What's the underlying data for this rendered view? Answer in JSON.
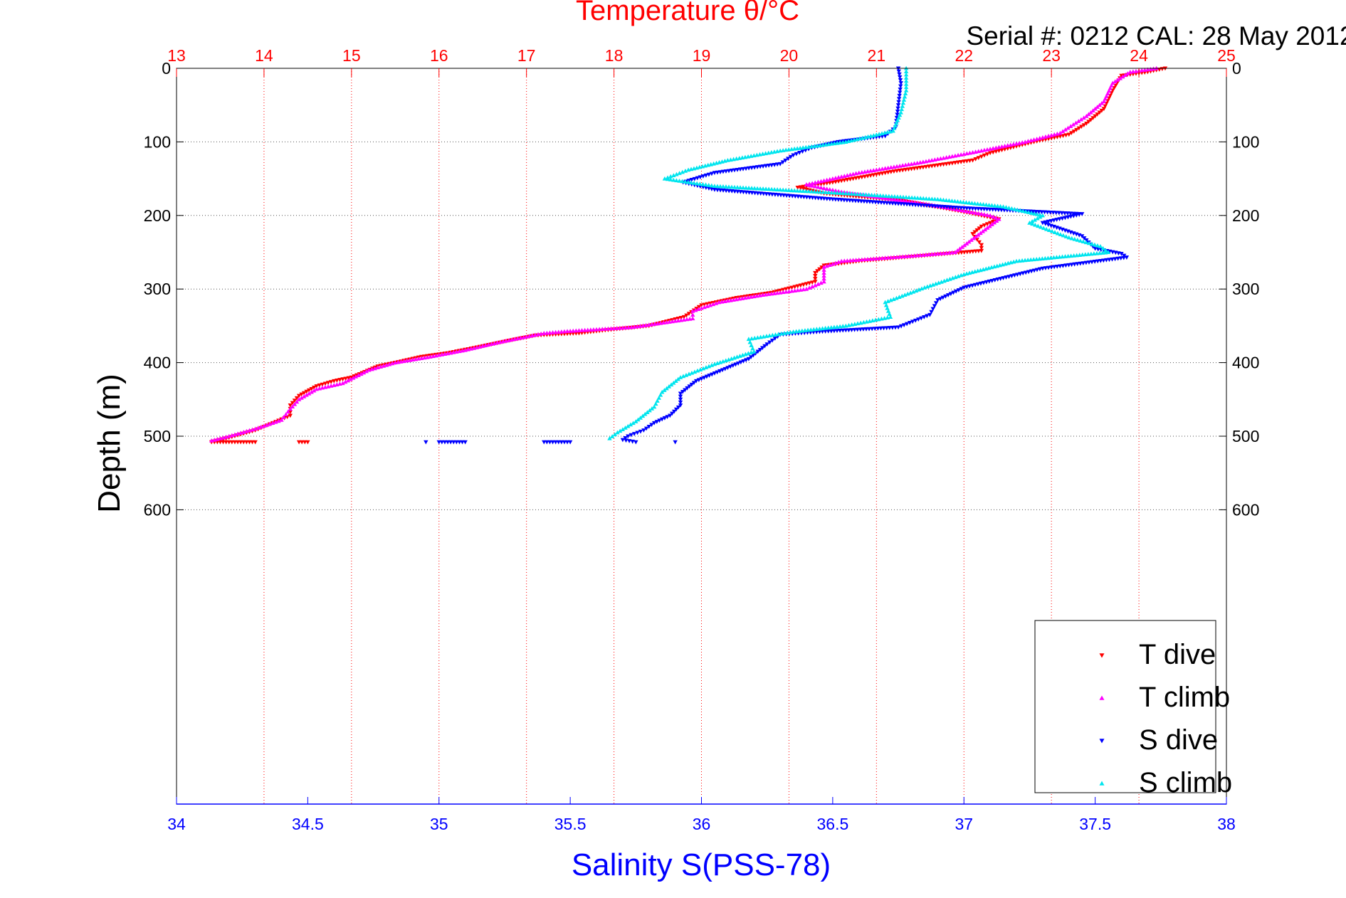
{
  "chart_data": {
    "type": "scatter",
    "title": "Temperature θ/°C",
    "subtitle": "Serial #: 0212  CAL: 28 May 2012",
    "xlabel": "Salinity S(PSS-78)",
    "ylabel": "Depth (m)",
    "ylim": [
      0,
      1000
    ],
    "y_reversed": true,
    "y_ticks": [
      0,
      100,
      200,
      300,
      400,
      500,
      600
    ],
    "y_tick_labels": [
      "0",
      "100",
      "200",
      "300",
      "400",
      "500",
      "600"
    ],
    "temp_axis": {
      "position": "top",
      "range": [
        13,
        25
      ],
      "ticks": [
        13,
        14,
        15,
        16,
        17,
        18,
        19,
        20,
        21,
        22,
        23,
        24,
        25
      ],
      "tick_labels": [
        "13",
        "14",
        "15",
        "16",
        "17",
        "18",
        "19",
        "20",
        "21",
        "22",
        "23",
        "24",
        "25"
      ],
      "color": "#ff0000",
      "grid": true
    },
    "sal_axis": {
      "position": "bottom",
      "range": [
        34,
        38
      ],
      "ticks": [
        34,
        34.5,
        35,
        35.5,
        36,
        36.5,
        37,
        37.5,
        38
      ],
      "tick_labels": [
        "34",
        "34.5",
        "35",
        "35.5",
        "36",
        "36.5",
        "37",
        "37.5",
        "38"
      ],
      "color": "#0000ff"
    },
    "legend": {
      "placement": "bottom-right"
    },
    "series": [
      {
        "name": "T dive",
        "axis": "temp",
        "marker": "triangle-down",
        "color": "#ff0000",
        "points": [
          [
            24.3,
            0
          ],
          [
            24.1,
            5
          ],
          [
            23.8,
            10
          ],
          [
            23.7,
            30
          ],
          [
            23.6,
            55
          ],
          [
            23.4,
            75
          ],
          [
            23.2,
            90
          ],
          [
            22.8,
            100
          ],
          [
            22.3,
            115
          ],
          [
            22.1,
            125
          ],
          [
            21.2,
            140
          ],
          [
            20.5,
            155
          ],
          [
            20.1,
            162
          ],
          [
            20.4,
            170
          ],
          [
            21.3,
            180
          ],
          [
            22.0,
            195
          ],
          [
            22.4,
            205
          ],
          [
            22.2,
            215
          ],
          [
            22.1,
            225
          ],
          [
            22.2,
            240
          ],
          [
            22.2,
            248
          ],
          [
            20.8,
            262
          ],
          [
            20.4,
            268
          ],
          [
            20.3,
            278
          ],
          [
            20.3,
            290
          ],
          [
            19.8,
            305
          ],
          [
            19.4,
            312
          ],
          [
            19.0,
            322
          ],
          [
            18.8,
            338
          ],
          [
            18.4,
            350
          ],
          [
            17.9,
            356
          ],
          [
            17.6,
            360
          ],
          [
            17.1,
            363
          ],
          [
            16.8,
            370
          ],
          [
            16.4,
            380
          ],
          [
            16.1,
            387
          ],
          [
            15.8,
            392
          ],
          [
            15.5,
            400
          ],
          [
            15.3,
            405
          ],
          [
            15.0,
            420
          ],
          [
            14.8,
            425
          ],
          [
            14.6,
            432
          ],
          [
            14.4,
            445
          ],
          [
            14.3,
            458
          ],
          [
            14.3,
            472
          ],
          [
            14.1,
            482
          ],
          [
            13.9,
            492
          ],
          [
            13.6,
            502
          ],
          [
            13.4,
            508
          ],
          [
            13.6,
            508
          ],
          [
            13.9,
            508
          ],
          [
            14.4,
            508
          ],
          [
            14.5,
            508
          ]
        ]
      },
      {
        "name": "T climb",
        "axis": "temp",
        "marker": "triangle-up",
        "color": "#ff00ff",
        "points": [
          [
            24.2,
            0
          ],
          [
            23.9,
            5
          ],
          [
            23.7,
            20
          ],
          [
            23.6,
            45
          ],
          [
            23.4,
            65
          ],
          [
            23.1,
            88
          ],
          [
            22.7,
            100
          ],
          [
            22.2,
            112
          ],
          [
            21.5,
            128
          ],
          [
            20.8,
            142
          ],
          [
            20.2,
            158
          ],
          [
            20.6,
            168
          ],
          [
            21.6,
            185
          ],
          [
            22.3,
            200
          ],
          [
            22.4,
            205
          ],
          [
            21.9,
            250
          ],
          [
            21.4,
            255
          ],
          [
            20.6,
            262
          ],
          [
            20.4,
            270
          ],
          [
            20.4,
            290
          ],
          [
            20.2,
            300
          ],
          [
            19.7,
            308
          ],
          [
            19.2,
            318
          ],
          [
            18.9,
            330
          ],
          [
            18.9,
            340
          ],
          [
            18.2,
            352
          ],
          [
            17.5,
            357
          ],
          [
            17.2,
            360
          ],
          [
            16.7,
            372
          ],
          [
            16.3,
            383
          ],
          [
            15.9,
            392
          ],
          [
            15.5,
            400
          ],
          [
            15.2,
            410
          ],
          [
            14.9,
            428
          ],
          [
            14.6,
            436
          ],
          [
            14.4,
            450
          ],
          [
            14.3,
            463
          ],
          [
            14.2,
            478
          ],
          [
            13.9,
            490
          ],
          [
            13.6,
            500
          ],
          [
            13.4,
            506
          ]
        ]
      },
      {
        "name": "S dive",
        "axis": "sal",
        "marker": "triangle-down",
        "color": "#0000ff",
        "points": [
          [
            36.75,
            0
          ],
          [
            36.76,
            20
          ],
          [
            36.75,
            50
          ],
          [
            36.74,
            80
          ],
          [
            36.7,
            92
          ],
          [
            36.52,
            100
          ],
          [
            36.42,
            108
          ],
          [
            36.35,
            118
          ],
          [
            36.3,
            130
          ],
          [
            36.05,
            142
          ],
          [
            35.93,
            155
          ],
          [
            36.05,
            165
          ],
          [
            36.5,
            178
          ],
          [
            37.0,
            190
          ],
          [
            37.45,
            198
          ],
          [
            37.3,
            210
          ],
          [
            37.45,
            228
          ],
          [
            37.5,
            245
          ],
          [
            37.6,
            252
          ],
          [
            37.62,
            257
          ],
          [
            37.3,
            272
          ],
          [
            37.15,
            285
          ],
          [
            37.0,
            298
          ],
          [
            36.9,
            315
          ],
          [
            36.87,
            335
          ],
          [
            36.75,
            352
          ],
          [
            36.45,
            358
          ],
          [
            36.3,
            362
          ],
          [
            36.25,
            375
          ],
          [
            36.18,
            395
          ],
          [
            36.08,
            410
          ],
          [
            35.98,
            425
          ],
          [
            35.92,
            442
          ],
          [
            35.92,
            458
          ],
          [
            35.88,
            472
          ],
          [
            35.82,
            482
          ],
          [
            35.78,
            492
          ],
          [
            35.72,
            500
          ],
          [
            35.7,
            505
          ],
          [
            35.75,
            508
          ],
          [
            35.9,
            508
          ],
          [
            35.4,
            508
          ],
          [
            35.5,
            508
          ],
          [
            35.0,
            508
          ],
          [
            35.1,
            508
          ],
          [
            34.95,
            508
          ]
        ]
      },
      {
        "name": "S climb",
        "axis": "sal",
        "marker": "triangle-up",
        "color": "#00e5ee",
        "points": [
          [
            36.78,
            0
          ],
          [
            36.78,
            30
          ],
          [
            36.76,
            60
          ],
          [
            36.73,
            85
          ],
          [
            36.55,
            100
          ],
          [
            36.3,
            112
          ],
          [
            36.1,
            125
          ],
          [
            35.95,
            138
          ],
          [
            35.86,
            150
          ],
          [
            36.05,
            160
          ],
          [
            36.55,
            170
          ],
          [
            36.9,
            178
          ],
          [
            37.15,
            188
          ],
          [
            37.3,
            200
          ],
          [
            37.25,
            210
          ],
          [
            37.4,
            230
          ],
          [
            37.52,
            242
          ],
          [
            37.55,
            250
          ],
          [
            37.2,
            262
          ],
          [
            37.0,
            280
          ],
          [
            36.85,
            298
          ],
          [
            36.7,
            318
          ],
          [
            36.72,
            338
          ],
          [
            36.55,
            350
          ],
          [
            36.35,
            358
          ],
          [
            36.18,
            368
          ],
          [
            36.2,
            385
          ],
          [
            36.05,
            402
          ],
          [
            35.92,
            420
          ],
          [
            35.85,
            440
          ],
          [
            35.82,
            460
          ],
          [
            35.75,
            480
          ],
          [
            35.68,
            495
          ],
          [
            35.65,
            503
          ]
        ]
      }
    ]
  }
}
